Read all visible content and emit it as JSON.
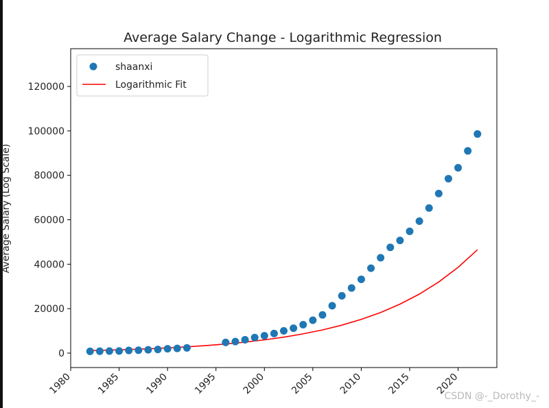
{
  "chart_data": {
    "type": "scatter",
    "title": "Average Salary Change - Logarithmic Regression",
    "xlabel": "",
    "ylabel": "Average Salary (Log Scale)",
    "xlim": [
      1980,
      2024
    ],
    "ylim": [
      -6500,
      137000
    ],
    "xticks": [
      1980,
      1985,
      1990,
      1995,
      2000,
      2005,
      2010,
      2015,
      2020
    ],
    "yticks": [
      0,
      20000,
      40000,
      60000,
      80000,
      100000,
      120000
    ],
    "legend_position": "upper-left",
    "series": [
      {
        "name": "shaanxi",
        "kind": "scatter",
        "color": "#1f77b4",
        "x": [
          1982,
          1983,
          1984,
          1985,
          1986,
          1987,
          1988,
          1989,
          1990,
          1991,
          1992,
          1996,
          1997,
          1998,
          1999,
          2000,
          2001,
          2002,
          2003,
          2004,
          2005,
          2006,
          2007,
          2008,
          2009,
          2010,
          2011,
          2012,
          2013,
          2014,
          2015,
          2016,
          2017,
          2018,
          2019,
          2020,
          2021,
          2022
        ],
        "y": [
          800,
          850,
          900,
          950,
          1200,
          1300,
          1500,
          1650,
          1950,
          2100,
          2350,
          4800,
          5200,
          6000,
          7000,
          7800,
          8800,
          10000,
          11200,
          12800,
          14800,
          17200,
          21300,
          25800,
          29300,
          33200,
          38200,
          42900,
          47600,
          50700,
          54800,
          59400,
          65300,
          71800,
          78500,
          83400,
          91000,
          98600
        ]
      },
      {
        "name": "Logarithmic Fit",
        "kind": "line",
        "color": "#ff0000",
        "x": [
          1982,
          1984,
          1986,
          1988,
          1990,
          1992,
          1994,
          1996,
          1998,
          2000,
          2002,
          2004,
          2006,
          2008,
          2010,
          2012,
          2014,
          2016,
          2018,
          2020,
          2022
        ],
        "y": [
          1110,
          1335,
          1610,
          1940,
          2340,
          2820,
          3400,
          4100,
          4940,
          5960,
          7180,
          8660,
          10440,
          12580,
          15170,
          18280,
          22040,
          26560,
          32020,
          38600,
          46530
        ]
      }
    ]
  },
  "watermark": "CSDN @-_Dorothy_-"
}
